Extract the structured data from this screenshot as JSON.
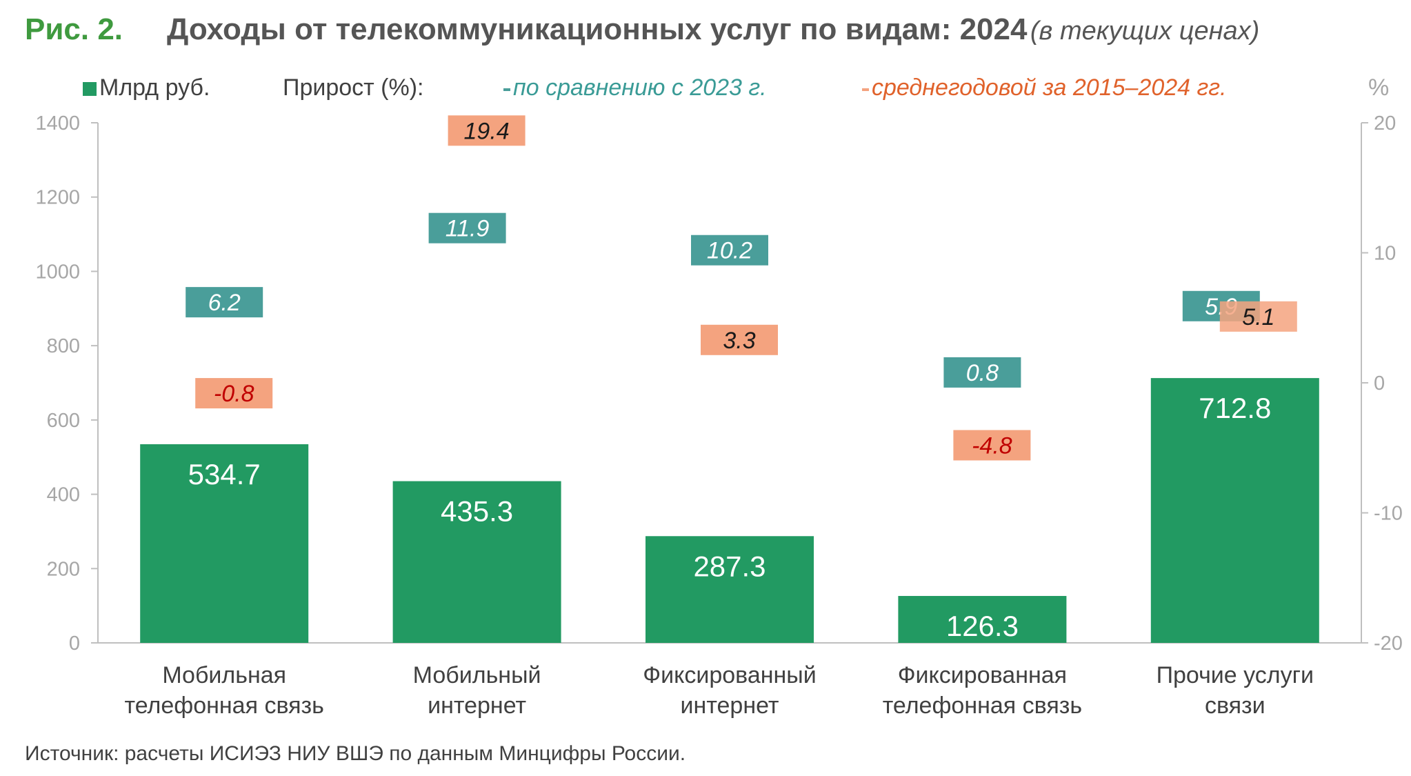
{
  "figure": {
    "number": "Рис. 2.",
    "title": "Доходы от телекоммуникационных услуг по видам: 2024",
    "subtitle": "(в текущих ценах)"
  },
  "legend": {
    "bars": "Млрд руб.",
    "growth_label": "Прирост (%):",
    "yoy": "по сравнению с 2023 г.",
    "avg": "среднегодовой за 2015–2024 гг.",
    "right_unit": "%"
  },
  "colors": {
    "bar": "#229a62",
    "yoy": "#4a9e9a",
    "avg": "#f4a37f",
    "axis_text": "#a6a6a6",
    "neg_label": "#c00000"
  },
  "chart_data": {
    "type": "bar",
    "categories": [
      [
        "Мобильная",
        "телефонная связь"
      ],
      [
        "Мобильный",
        "интернет"
      ],
      [
        "Фиксированный",
        "интернет"
      ],
      [
        "Фиксированная",
        "телефонная связь"
      ],
      [
        "Прочие услуги",
        "связи"
      ]
    ],
    "values": [
      534.7,
      435.3,
      287.3,
      126.3,
      712.8
    ],
    "value_labels": [
      "534.7",
      "435.3",
      "287.3",
      "126.3",
      "712.8"
    ],
    "ylim": [
      0,
      1400
    ],
    "yticks": [
      0,
      200,
      400,
      600,
      800,
      1000,
      1200,
      1400
    ],
    "y2lim": [
      -20,
      20
    ],
    "y2ticks": [
      -20,
      -10,
      0,
      10,
      20
    ],
    "series": [
      {
        "name": "по сравнению с 2023 г.",
        "axis": "right",
        "values": [
          6.2,
          11.9,
          10.2,
          0.8,
          5.9
        ],
        "labels": [
          "6.2",
          "11.9",
          "10.2",
          "0.8",
          "5.9"
        ]
      },
      {
        "name": "среднегодовой за 2015–2024 гг.",
        "axis": "right",
        "values": [
          -0.8,
          19.4,
          3.3,
          -4.8,
          5.1
        ],
        "labels": [
          "-0.8",
          "19.4",
          "3.3",
          "-4.8",
          "5.1"
        ]
      }
    ],
    "grid": false
  },
  "source": "Источник: расчеты ИСИЭЗ НИУ ВШЭ по данным Минцифры России."
}
